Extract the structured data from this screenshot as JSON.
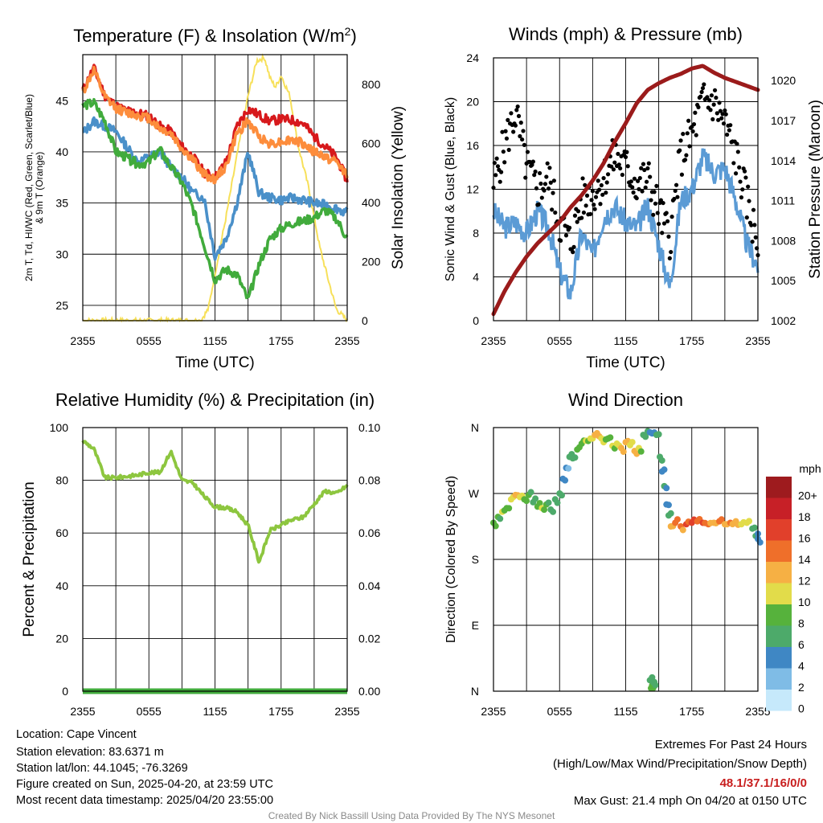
{
  "chart_data": [
    {
      "type": "line",
      "title": "Temperature (F) & Insolation (W/m²)",
      "xlabel": "Time (UTC)",
      "ylabel": "2m T, Td, HI/WC (Red, Green, Scarlet/Blue) & 9m T (Orange)",
      "ylabel_right": "Solar Insolation (Yellow)",
      "ylim": [
        23.5,
        49.5
      ],
      "ylim_right": [
        0,
        900
      ],
      "x_ticks": [
        "2355",
        "0555",
        "1155",
        "1755",
        "2355"
      ],
      "y_ticks": [
        25,
        30,
        35,
        40,
        45
      ],
      "y_ticks_right": [
        0,
        200,
        400,
        600,
        800
      ],
      "x_hours": [
        0,
        1,
        2,
        3,
        4,
        5,
        6,
        7,
        8,
        9,
        10,
        11,
        12,
        13,
        14,
        15,
        16,
        17,
        18,
        19,
        20,
        21,
        22,
        23,
        24
      ],
      "series": [
        {
          "name": "2m T",
          "color": "#d7191c",
          "values": [
            46,
            48.2,
            45.5,
            44.5,
            44,
            43.8,
            43.5,
            42.5,
            42,
            40.5,
            39.5,
            38,
            37.5,
            39,
            42.5,
            44.2,
            43.6,
            43,
            43.2,
            43.1,
            42.8,
            41.5,
            40.5,
            39.5,
            37.2
          ]
        },
        {
          "name": "9m T",
          "color": "#fd8d3c",
          "values": [
            45.8,
            48,
            45.3,
            44.3,
            43.8,
            43.6,
            43.3,
            42.3,
            41.8,
            40.3,
            39.2,
            37.8,
            37.3,
            38.6,
            41.8,
            43,
            41.5,
            40.8,
            41,
            41.2,
            40.8,
            40,
            39.5,
            39,
            37.8
          ]
        },
        {
          "name": "HI/WC",
          "color": "#4a90c9",
          "values": [
            41.8,
            43,
            42.5,
            42,
            40.5,
            39,
            39.5,
            40,
            38.5,
            37.5,
            36,
            35.5,
            29.8,
            31.5,
            35,
            40,
            36,
            35.5,
            35.3,
            35.5,
            35.3,
            35,
            34.8,
            34.5,
            34
          ]
        },
        {
          "name": "2m Td",
          "color": "#41ab3c",
          "values": [
            44.5,
            44.8,
            43,
            40,
            39.4,
            38.8,
            39,
            40.2,
            38.5,
            37,
            34.5,
            31,
            27.5,
            28.5,
            28,
            25.5,
            29,
            31.5,
            32.5,
            33,
            33.2,
            33.6,
            34.3,
            33.5,
            31.5
          ]
        }
      ],
      "series_right": [
        {
          "name": "Solar Insolation",
          "color": "#f7e05a",
          "x_hours": [
            0,
            10,
            10.7,
            11.4,
            12,
            13,
            14,
            15,
            15.8,
            16.5,
            17,
            17.5,
            18,
            18.8,
            19.5,
            20.5,
            21.5,
            22.2,
            23,
            24
          ],
          "values": [
            0,
            0,
            0,
            40,
            160,
            350,
            560,
            760,
            880,
            890,
            820,
            790,
            830,
            760,
            600,
            450,
            250,
            150,
            40,
            0
          ]
        }
      ]
    },
    {
      "type": "line",
      "title": "Winds (mph) & Pressure (mb)",
      "xlabel": "Time (UTC)",
      "ylabel": "Sonic Wind & Gust (Blue, Black)",
      "ylabel_right": "Station Pressure (Maroon)",
      "ylim": [
        0,
        24
      ],
      "ylim_right": [
        1002,
        1021.7
      ],
      "x_ticks": [
        "2355",
        "0555",
        "1155",
        "1755",
        "2355"
      ],
      "y_ticks": [
        0,
        4,
        8,
        12,
        16,
        20,
        24
      ],
      "y_ticks_right": [
        1002,
        1005,
        1008,
        1011,
        1014,
        1017,
        1020
      ],
      "x_hours": [
        0,
        1,
        2,
        3,
        4,
        5,
        6,
        7,
        8,
        9,
        10,
        11,
        12,
        13,
        14,
        15,
        16,
        17,
        18,
        19,
        20,
        21,
        22,
        23,
        24
      ],
      "series": [
        {
          "name": "Sonic Wind",
          "color": "#5b9bd5",
          "values": [
            10,
            8.5,
            9,
            8,
            10,
            8.5,
            4.5,
            2.5,
            8,
            6,
            9.5,
            10.5,
            9,
            8.5,
            10.5,
            7,
            3,
            11,
            12,
            15,
            13.5,
            14,
            11,
            7,
            5
          ]
        },
        {
          "name": "Gust",
          "color": "#000000",
          "values": [
            12.5,
            16,
            19,
            14,
            12,
            13,
            9,
            7,
            11,
            11.5,
            13,
            15,
            14,
            12.5,
            13,
            10,
            7.5,
            15,
            17,
            20,
            20,
            18,
            15,
            11,
            7
          ]
        },
        {
          "name": "Station Pressure",
          "color": "#9b1b1b",
          "axis": "right",
          "values": [
            1002.5,
            1004.2,
            1005.6,
            1006.8,
            1007.8,
            1008.6,
            1009.4,
            1010.5,
            1011.4,
            1012.5,
            1013.8,
            1015.4,
            1016.8,
            1018.3,
            1019.3,
            1019.8,
            1020.2,
            1020.5,
            1020.9,
            1021.1,
            1020.6,
            1020.2,
            1019.9,
            1019.6,
            1019.3
          ]
        }
      ]
    },
    {
      "type": "line",
      "title": "Relative Humidity (%) & Precipitation (in)",
      "xlabel": "",
      "ylabel": "Percent & Precipitation",
      "ylim": [
        0,
        100
      ],
      "ylim_right": [
        0,
        0.1
      ],
      "x_ticks": [
        "2355",
        "0555",
        "1155",
        "1755",
        "2355"
      ],
      "y_ticks": [
        0,
        20,
        40,
        60,
        80,
        100
      ],
      "y_ticks_right": [
        "0.00",
        "0.02",
        "0.04",
        "0.06",
        "0.08",
        "0.10"
      ],
      "x_hours": [
        0,
        1,
        2,
        3,
        4,
        5,
        6,
        7,
        8,
        9,
        10,
        11,
        12,
        13,
        14,
        15,
        16,
        17,
        18,
        19,
        20,
        21,
        22,
        23,
        24
      ],
      "series": [
        {
          "name": "Relative Humidity",
          "color": "#8dc63f",
          "values": [
            95,
            92,
            81,
            81,
            81.5,
            82,
            83,
            83,
            91,
            80,
            79,
            74,
            70,
            69.5,
            68,
            63,
            49,
            61,
            63,
            65,
            66,
            71,
            76,
            75,
            78
          ]
        },
        {
          "name": "Precipitation",
          "color": "#41ab3c",
          "values": [
            0,
            0,
            0,
            0,
            0,
            0,
            0,
            0,
            0,
            0,
            0,
            0,
            0,
            0,
            0,
            0,
            0,
            0,
            0,
            0,
            0,
            0,
            0,
            0,
            0
          ]
        }
      ]
    },
    {
      "type": "scatter",
      "title": "Wind Direction",
      "xlabel": "",
      "ylabel": "Direction (Colored By Speed)",
      "ylim": [
        0,
        360
      ],
      "x_ticks": [
        "2355",
        "0555",
        "1155",
        "1755",
        "2355"
      ],
      "y_tick_labels": [
        "N",
        "E",
        "S",
        "W",
        "N"
      ],
      "legend_title": "mph",
      "legend_labels": [
        "0",
        "2",
        "4",
        "6",
        "8",
        "10",
        "12",
        "14",
        "16",
        "18",
        "20+"
      ],
      "legend_colors": [
        "#c6e9fb",
        "#7fbce6",
        "#3f87c4",
        "#4daa6a",
        "#56b23c",
        "#e2dc4a",
        "#f6b044",
        "#ef6f2a",
        "#e1402b",
        "#c72027",
        "#9e1b1e"
      ],
      "legend_placement": "right",
      "points": [
        {
          "x": 0,
          "y": 230,
          "speed": 8
        },
        {
          "x": 0.4,
          "y": 238,
          "speed": 7
        },
        {
          "x": 0.8,
          "y": 245,
          "speed": 9
        },
        {
          "x": 1.2,
          "y": 250,
          "speed": 8
        },
        {
          "x": 1.6,
          "y": 262,
          "speed": 10
        },
        {
          "x": 2,
          "y": 268,
          "speed": 11
        },
        {
          "x": 2.4,
          "y": 265,
          "speed": 9
        },
        {
          "x": 2.8,
          "y": 262,
          "speed": 8
        },
        {
          "x": 3.2,
          "y": 268,
          "speed": 7
        },
        {
          "x": 3.6,
          "y": 258,
          "speed": 6
        },
        {
          "x": 4,
          "y": 252,
          "speed": 8
        },
        {
          "x": 4.4,
          "y": 250,
          "speed": 9
        },
        {
          "x": 4.8,
          "y": 255,
          "speed": 7
        },
        {
          "x": 5.2,
          "y": 248,
          "speed": 6
        },
        {
          "x": 5.6,
          "y": 262,
          "speed": 6
        },
        {
          "x": 6,
          "y": 270,
          "speed": 5
        },
        {
          "x": 6.3,
          "y": 290,
          "speed": 4
        },
        {
          "x": 6.6,
          "y": 305,
          "speed": 3
        },
        {
          "x": 6.9,
          "y": 320,
          "speed": 5
        },
        {
          "x": 7.2,
          "y": 318,
          "speed": 6
        },
        {
          "x": 7.6,
          "y": 330,
          "speed": 7
        },
        {
          "x": 8,
          "y": 338,
          "speed": 8
        },
        {
          "x": 8.4,
          "y": 342,
          "speed": 9
        },
        {
          "x": 8.8,
          "y": 345,
          "speed": 10
        },
        {
          "x": 9.2,
          "y": 350,
          "speed": 12
        },
        {
          "x": 9.6,
          "y": 348,
          "speed": 11
        },
        {
          "x": 10,
          "y": 340,
          "speed": 9
        },
        {
          "x": 10.4,
          "y": 345,
          "speed": 8
        },
        {
          "x": 10.8,
          "y": 335,
          "speed": 9
        },
        {
          "x": 11.2,
          "y": 338,
          "speed": 10
        },
        {
          "x": 11.6,
          "y": 332,
          "speed": 12
        },
        {
          "x": 12,
          "y": 340,
          "speed": 11
        },
        {
          "x": 12.4,
          "y": 336,
          "speed": 10
        },
        {
          "x": 12.8,
          "y": 328,
          "speed": 12
        },
        {
          "x": 13.2,
          "y": 332,
          "speed": 9
        },
        {
          "x": 13.6,
          "y": 350,
          "speed": 6
        },
        {
          "x": 14,
          "y": 355,
          "speed": 5
        },
        {
          "x": 14.4,
          "y": 352,
          "speed": 4
        },
        {
          "x": 14.8,
          "y": 350,
          "speed": 6
        },
        {
          "x": 15.1,
          "y": 320,
          "speed": 5
        },
        {
          "x": 15.3,
          "y": 300,
          "speed": 4
        },
        {
          "x": 15.5,
          "y": 280,
          "speed": 5
        },
        {
          "x": 15.7,
          "y": 255,
          "speed": 4
        },
        {
          "x": 15.9,
          "y": 240,
          "speed": 6
        },
        {
          "x": 16.1,
          "y": 225,
          "speed": 12
        },
        {
          "x": 16.5,
          "y": 230,
          "speed": 14
        },
        {
          "x": 17,
          "y": 225,
          "speed": 13
        },
        {
          "x": 17.5,
          "y": 228,
          "speed": 15
        },
        {
          "x": 18,
          "y": 230,
          "speed": 16
        },
        {
          "x": 18.5,
          "y": 232,
          "speed": 14
        },
        {
          "x": 19,
          "y": 230,
          "speed": 15
        },
        {
          "x": 19.5,
          "y": 228,
          "speed": 13
        },
        {
          "x": 20,
          "y": 230,
          "speed": 12
        },
        {
          "x": 20.5,
          "y": 232,
          "speed": 14
        },
        {
          "x": 21,
          "y": 228,
          "speed": 12
        },
        {
          "x": 21.5,
          "y": 230,
          "speed": 13
        },
        {
          "x": 22,
          "y": 232,
          "speed": 11
        },
        {
          "x": 22.5,
          "y": 228,
          "speed": 10
        },
        {
          "x": 23,
          "y": 230,
          "speed": 9
        },
        {
          "x": 23.5,
          "y": 222,
          "speed": 6
        },
        {
          "x": 23.8,
          "y": 212,
          "speed": 5
        },
        {
          "x": 24,
          "y": 208,
          "speed": 4
        },
        {
          "x": 14.2,
          "y": 15,
          "speed": 6
        },
        {
          "x": 14.4,
          "y": 8,
          "speed": 7
        },
        {
          "x": 14.3,
          "y": 4,
          "speed": 8
        },
        {
          "x": 14.5,
          "y": 12,
          "speed": 6
        }
      ]
    }
  ],
  "station_info": {
    "location": "Location: Cape Vincent",
    "elevation": "Station elevation: 83.6371 m",
    "latlon": "Station lat/lon: 44.1045; -76.3269",
    "created": "Figure created on Sun, 2025-04-20, at 23:59 UTC",
    "recent": "Most recent data timestamp: 2025/04/20 23:55:00"
  },
  "extremes": {
    "heading": "Extremes For Past 24 Hours",
    "subheading": "(High/Low/Max Wind/Precipitation/Snow Depth)",
    "values": "48.1/37.1/16/0/0",
    "max_gust": "Max Gust: 21.4 mph On 04/20 at 0150 UTC"
  },
  "credit": "Created By Nick Bassill Using Data Provided By The NYS Mesonet"
}
